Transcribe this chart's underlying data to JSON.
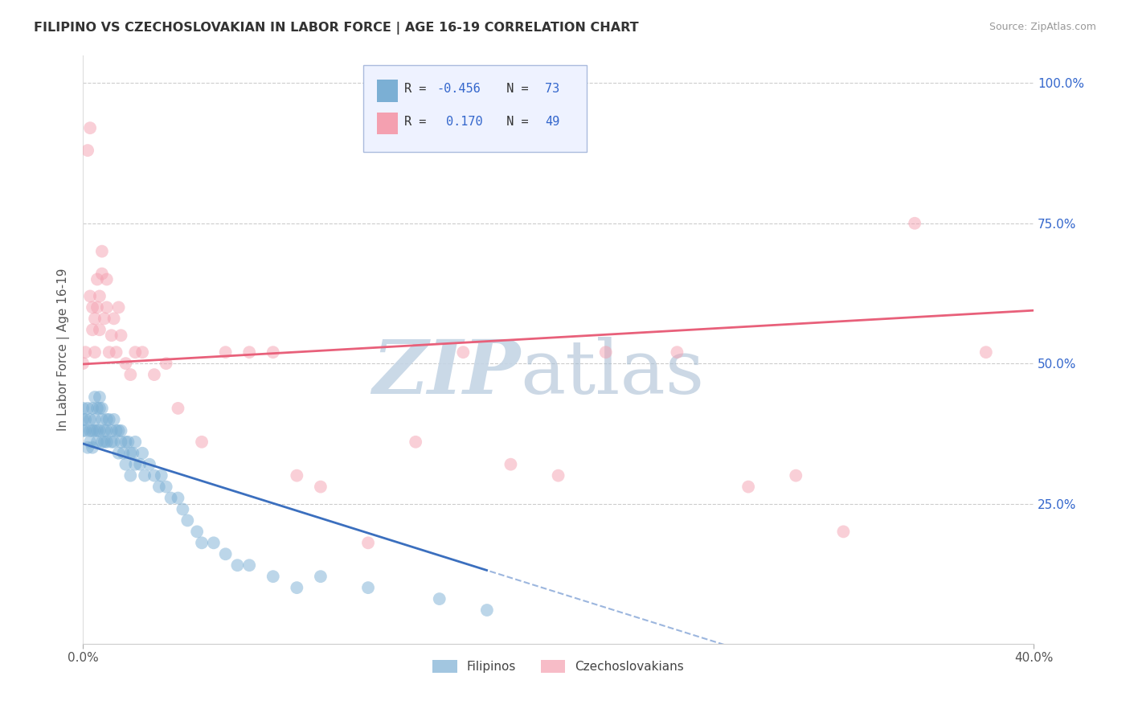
{
  "title": "FILIPINO VS CZECHOSLOVAKIAN IN LABOR FORCE | AGE 16-19 CORRELATION CHART",
  "source": "Source: ZipAtlas.com",
  "ylabel": "In Labor Force | Age 16-19",
  "y_ticks_labels": [
    "100.0%",
    "75.0%",
    "50.0%",
    "25.0%"
  ],
  "y_tick_vals": [
    1.0,
    0.75,
    0.5,
    0.25
  ],
  "x_ticks_labels": [
    "0.0%",
    "40.0%"
  ],
  "x_tick_vals": [
    0.0,
    0.4
  ],
  "xlim": [
    0.0,
    0.4
  ],
  "ylim": [
    0.0,
    1.05
  ],
  "blue_r": -0.456,
  "blue_n": 73,
  "pink_r": 0.17,
  "pink_n": 49,
  "blue_color": "#7BAFD4",
  "pink_color": "#F4A0B0",
  "blue_line_color": "#3B6FBE",
  "pink_line_color": "#E8607A",
  "grid_color": "#CCCCCC",
  "background_color": "#FFFFFF",
  "legend_facecolor": "#EEF2FF",
  "legend_edgecolor": "#AABBDD",
  "blue_scatter_x": [
    0.0,
    0.0,
    0.0,
    0.001,
    0.001,
    0.002,
    0.002,
    0.003,
    0.003,
    0.003,
    0.004,
    0.004,
    0.004,
    0.005,
    0.005,
    0.005,
    0.006,
    0.006,
    0.006,
    0.007,
    0.007,
    0.007,
    0.008,
    0.008,
    0.008,
    0.009,
    0.009,
    0.01,
    0.01,
    0.01,
    0.011,
    0.012,
    0.012,
    0.013,
    0.013,
    0.014,
    0.015,
    0.015,
    0.016,
    0.016,
    0.017,
    0.018,
    0.018,
    0.019,
    0.02,
    0.02,
    0.021,
    0.022,
    0.022,
    0.024,
    0.025,
    0.026,
    0.028,
    0.03,
    0.032,
    0.033,
    0.035,
    0.037,
    0.04,
    0.042,
    0.044,
    0.048,
    0.05,
    0.055,
    0.06,
    0.065,
    0.07,
    0.08,
    0.09,
    0.1,
    0.12,
    0.15,
    0.17
  ],
  "blue_scatter_y": [
    0.42,
    0.38,
    0.4,
    0.38,
    0.4,
    0.35,
    0.42,
    0.38,
    0.4,
    0.36,
    0.42,
    0.38,
    0.35,
    0.44,
    0.4,
    0.38,
    0.42,
    0.38,
    0.36,
    0.44,
    0.42,
    0.38,
    0.4,
    0.36,
    0.42,
    0.38,
    0.36,
    0.4,
    0.38,
    0.36,
    0.4,
    0.38,
    0.36,
    0.4,
    0.36,
    0.38,
    0.38,
    0.34,
    0.36,
    0.38,
    0.34,
    0.36,
    0.32,
    0.36,
    0.34,
    0.3,
    0.34,
    0.32,
    0.36,
    0.32,
    0.34,
    0.3,
    0.32,
    0.3,
    0.28,
    0.3,
    0.28,
    0.26,
    0.26,
    0.24,
    0.22,
    0.2,
    0.18,
    0.18,
    0.16,
    0.14,
    0.14,
    0.12,
    0.1,
    0.12,
    0.1,
    0.08,
    0.06
  ],
  "pink_scatter_x": [
    0.0,
    0.001,
    0.002,
    0.003,
    0.003,
    0.004,
    0.004,
    0.005,
    0.005,
    0.006,
    0.006,
    0.007,
    0.007,
    0.008,
    0.008,
    0.009,
    0.01,
    0.01,
    0.011,
    0.012,
    0.013,
    0.014,
    0.015,
    0.016,
    0.018,
    0.02,
    0.022,
    0.025,
    0.03,
    0.035,
    0.04,
    0.05,
    0.06,
    0.07,
    0.08,
    0.09,
    0.1,
    0.12,
    0.14,
    0.16,
    0.18,
    0.2,
    0.22,
    0.25,
    0.28,
    0.3,
    0.32,
    0.35,
    0.38
  ],
  "pink_scatter_y": [
    0.5,
    0.52,
    0.88,
    0.92,
    0.62,
    0.56,
    0.6,
    0.58,
    0.52,
    0.6,
    0.65,
    0.56,
    0.62,
    0.66,
    0.7,
    0.58,
    0.6,
    0.65,
    0.52,
    0.55,
    0.58,
    0.52,
    0.6,
    0.55,
    0.5,
    0.48,
    0.52,
    0.52,
    0.48,
    0.5,
    0.42,
    0.36,
    0.52,
    0.52,
    0.52,
    0.3,
    0.28,
    0.18,
    0.36,
    0.52,
    0.32,
    0.3,
    0.52,
    0.52,
    0.28,
    0.3,
    0.2,
    0.75,
    0.52
  ]
}
